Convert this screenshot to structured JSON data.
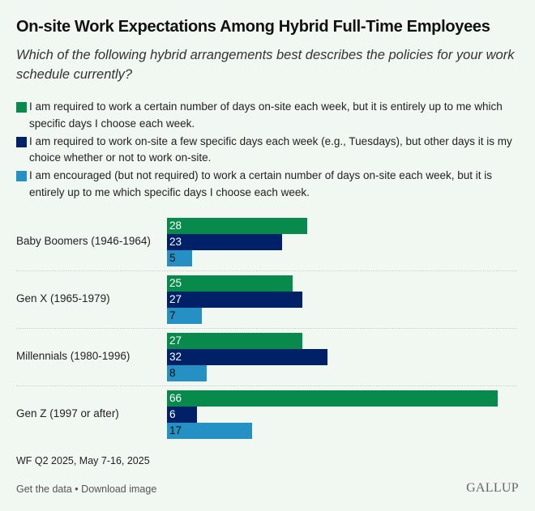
{
  "header": {
    "title": "On-site Work Expectations Among Hybrid Full-Time Employees",
    "subtitle": "Which of the following hybrid arrangements best describes the policies for your work schedule currently?"
  },
  "colors": {
    "series0": "#078a4c",
    "series1": "#002068",
    "series2": "#2590c4"
  },
  "chart_data": {
    "type": "bar",
    "orientation": "horizontal",
    "title": "On-site Work Expectations Among Hybrid Full-Time Employees",
    "categories": [
      "Baby Boomers (1946-1964)",
      "Gen X (1965-1979)",
      "Millennials (1980-1996)",
      "Gen Z (1997 or after)"
    ],
    "series": [
      {
        "name": "I am required to work a certain number of days on-site each week, but it is entirely up to me which specific days I choose each week.",
        "color": "#078a4c",
        "values": [
          28,
          25,
          27,
          66
        ]
      },
      {
        "name": "I am required to work on-site a few specific days each week (e.g., Tuesdays), but other days it is my choice whether or not to work on-site.",
        "color": "#002068",
        "values": [
          23,
          27,
          32,
          6
        ]
      },
      {
        "name": "I am encouraged (but not required) to work a certain number of days on-site each week, but it is entirely up to me which specific days I choose each week.",
        "color": "#2590c4",
        "values": [
          5,
          7,
          8,
          17
        ]
      }
    ],
    "xlim": [
      0,
      70
    ],
    "grid": false,
    "legend": "top",
    "xlabel": "",
    "ylabel": ""
  },
  "footer": {
    "source": "WF Q2 2025, May 7-16, 2025",
    "get_data": "Get the data",
    "separator": "•",
    "download": "Download image",
    "logo": "GALLUP"
  }
}
